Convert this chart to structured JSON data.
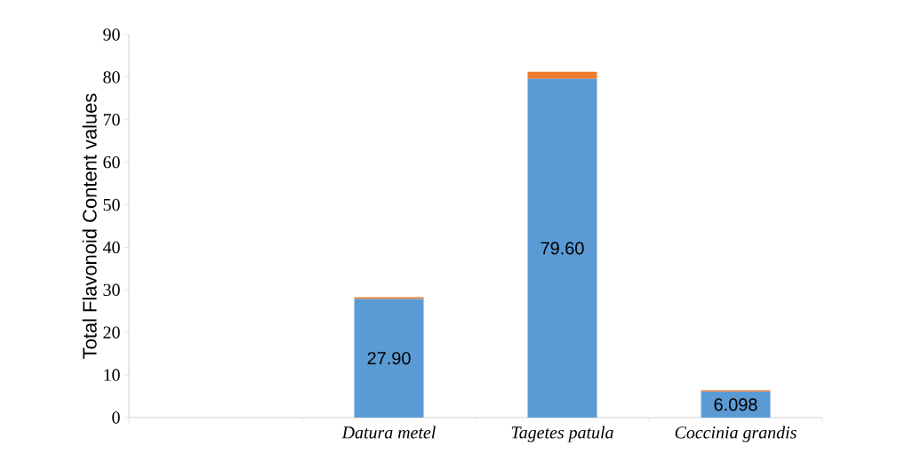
{
  "chart_data": {
    "type": "bar",
    "stacked": true,
    "ylabel": "Total Flavonoid Content values",
    "categories": [
      null,
      "Datura metel",
      "Tagetes patula",
      "Coccinia grandis"
    ],
    "ylim": [
      0,
      90
    ],
    "yticks": [
      0,
      10,
      20,
      30,
      40,
      50,
      60,
      70,
      80,
      90
    ],
    "series": [
      {
        "color": "#5b9bd5",
        "values": [
          null,
          27.9,
          79.6,
          6.098
        ],
        "value_labels": [
          null,
          "27.90",
          "79.60",
          "6.098"
        ]
      },
      {
        "color": "#ed7d31",
        "values": [
          null,
          0.4,
          1.7,
          0.3
        ]
      }
    ]
  }
}
